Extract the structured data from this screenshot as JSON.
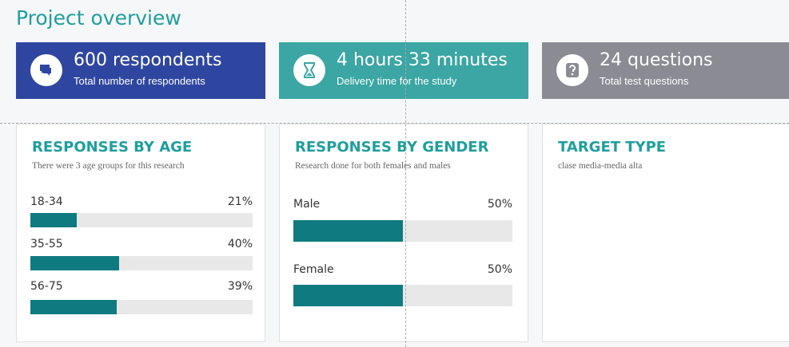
{
  "header": {
    "title": "Project overview"
  },
  "stats": [
    {
      "value": "600 respondents",
      "caption": "Total number of respondents"
    },
    {
      "value": "4 hours 33 minutes",
      "caption": "Delivery time for the study"
    },
    {
      "value": "24 questions",
      "caption": "Total test questions"
    }
  ],
  "panels": [
    {
      "title": "RESPONSES BY AGE",
      "subtitle": "There were 3 age groups for this research",
      "bars": [
        {
          "label": "18-34",
          "value": 21,
          "value_label": "21%"
        },
        {
          "label": "35-55",
          "value": 40,
          "value_label": "40%"
        },
        {
          "label": "56-75",
          "value": 39,
          "value_label": "39%"
        }
      ]
    },
    {
      "title": "RESPONSES BY GENDER",
      "subtitle": "Research done for both females and males",
      "bars": [
        {
          "label": "Male",
          "value": 50,
          "value_label": "50%"
        },
        {
          "label": "Female",
          "value": 50,
          "value_label": "50%"
        }
      ]
    },
    {
      "title": "TARGET TYPE",
      "subtitle": "clase media-media alta"
    }
  ]
}
